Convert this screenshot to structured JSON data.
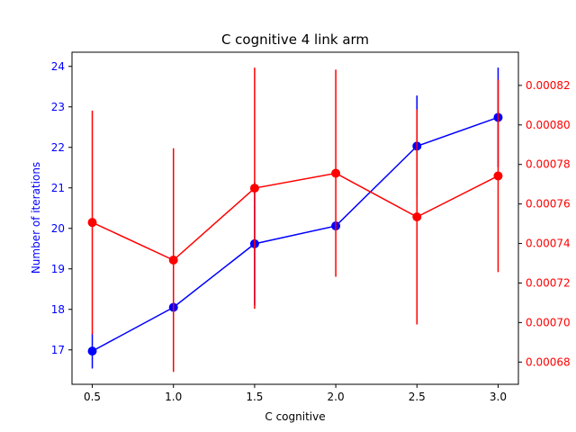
{
  "chart_data": {
    "type": "line",
    "title": "C cognitive 4 link arm",
    "xlabel": "C cognitive",
    "ylabel_left": "Number of iterations",
    "ylabel_right": "",
    "x": [
      0.5,
      1.0,
      1.5,
      2.0,
      2.5,
      3.0
    ],
    "x_ticks": [
      "0.5",
      "1.0",
      "1.5",
      "2.0",
      "2.5",
      "3.0"
    ],
    "xlim": [
      0.375,
      3.125
    ],
    "left_axis": {
      "ylim": [
        16.15,
        24.35
      ],
      "ticks": [
        "17",
        "18",
        "19",
        "20",
        "21",
        "22",
        "23",
        "24"
      ],
      "color": "#0000ff"
    },
    "right_axis": {
      "ylim": [
        0.00066875,
        0.0008368
      ],
      "ticks": [
        "0.00068",
        "0.00070",
        "0.00072",
        "0.00074",
        "0.00076",
        "0.00078",
        "0.00080",
        "0.00082"
      ],
      "color": "#ff0000"
    },
    "series": [
      {
        "axis": "left",
        "color": "#0000ff",
        "values": [
          16.97,
          18.05,
          19.62,
          20.06,
          22.03,
          22.74
        ],
        "errors": [
          0.43,
          0.0,
          1.52,
          0.0,
          1.25,
          1.23
        ]
      },
      {
        "axis": "right",
        "color": "#ff0000",
        "values": [
          0.00075065,
          0.0007316,
          0.000768,
          0.00077555,
          0.00075345,
          0.0007742
        ],
        "errors": [
          5.66e-05,
          5.66e-05,
          6.1e-05,
          5.24e-05,
          5.44e-05,
          4.87e-05
        ]
      }
    ]
  }
}
